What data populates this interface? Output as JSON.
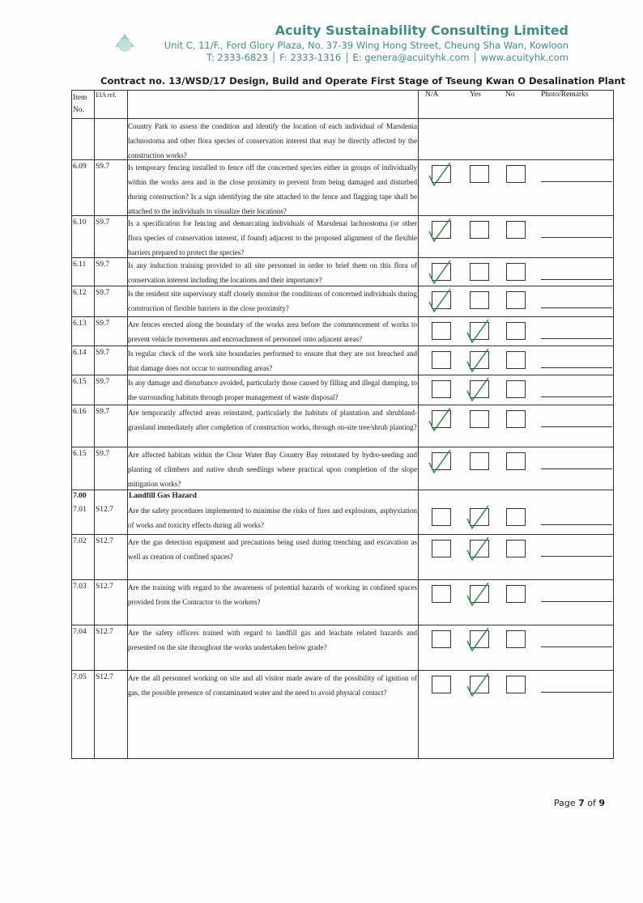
{
  "header": {
    "company": "Acuity Sustainability Consulting Limited",
    "address": "Unit C, 11/F., Ford Glory Plaza, No. 37-39 Wing Hong Street, Cheung Sha Wan, Kowloon",
    "phone": "T: 2333-6823",
    "fax": "F: 2333-1316",
    "email": "E: genera@acuityhk.com",
    "website": "www.acuityhk.com"
  },
  "title": "Contract no. 13/WSD/17 Design, Build and Operate First Stage of Tseung Kwan O Desalination Plant",
  "table": {
    "columns": [
      "Item No.",
      "EIA ref.",
      "N/A",
      "Yes",
      "No",
      "Photo/Remarks"
    ],
    "rows": [
      {
        "text": "Country Park to assess the condition and identify the location of each individual of Marsdenia lachnostoma and other flora species of conservation interest that may be directly affected by the construction works?"
      },
      {
        "item": "6.09",
        "ref": "S9.7",
        "text": "Is temporary fencing installed to fence off the concerned species either in groups of individually within the works area and in the close proximity to prevent from being damaged and disturbed during construction? Is a sign identifying the site attached to the fence and flagging tape shall be attached to the individuals to visualize their locations?",
        "checked": 0
      },
      {
        "item": "6.10",
        "ref": "S9.7",
        "text": "Is a specification for fencing and demarcating individuals of Marsdenai lachnostoma (or other flora species of conservation interest, if found) adjacent to the proposed alignment of the flexible barriers prepared to protect the species?",
        "checked": 0
      },
      {
        "item": "6.11",
        "ref": "S9.7",
        "text": "Is any induction training provided to all site personnel in order to brief them on this flora of conservation interest including the locations and their importance?",
        "checked": 0
      },
      {
        "item": "6.12",
        "ref": "S9.7",
        "text": "Is the resident site supervisory staff closely monitor the conditions of concerned individuals during construction of flexible barriers in the close proximity?",
        "checked": 0
      },
      {
        "item": "6.13",
        "ref": "S9.7",
        "text": "Are fences erected along the boundary of the works area before the commencement of works to prevent vehicle movements and encroachment of personnel onto adjacent areas?",
        "checked": 1
      },
      {
        "item": "6.14",
        "ref": "S9.7",
        "text": "Is regular check of the work site boundaries performed to ensure that they are not breached and that damage does not occur to surrounding areas?",
        "checked": 1
      },
      {
        "item": "6.15",
        "ref": "S9.7",
        "text": "Is any damage and disturbance avoided, particularly those caused by filling and illegal dumping, to the surrounding habitats through proper management of waste disposal?",
        "checked": 1
      },
      {
        "item": "6.16",
        "ref": "S9.7",
        "text": "Are temporarily affected areas reinstated, particularly the habitats of plantation and shrubland-grassland immediately after completion of construction works, through on-site tree/shrub planting?",
        "checked": 0
      },
      {
        "item": "6.15",
        "ref": "S9.7",
        "text": "Are affected habitats within the Clear Water Bay Country Bay reinstated by hydro-seeding and planting of climbers and native shrub seedlings where practical upon completion of the slope mitigation works?",
        "checked": 0
      },
      {
        "section": "7.00",
        "heading": "Landfill Gas Hazard",
        "item": "7.01",
        "ref": "S12.7",
        "text": "Are the safety procedures implemented to minimise the risks of fires and explosions, asphyxiation of works and toxicity effects during all works?",
        "checked": 1
      },
      {
        "item": "7.02",
        "ref": "S12.7",
        "text": "Are the gas detection equipment and precautions being used during trenching and excavation as well as creation of confined spaces?",
        "checked": 1
      },
      {
        "item": "7.03",
        "ref": "S12.7",
        "text": "Are the training with regard to the awareness of potential hazards of working in confined spaces provided from the Contractor to the workers?",
        "checked": 1
      },
      {
        "item": "7.04",
        "ref": "S12.7",
        "text": "Are the safety officers trained with regard to landfill gas and leachate related hazards and presented on the site throughout the works undertaken below grade?",
        "checked": 1
      },
      {
        "item": "7.05",
        "ref": "S12.7",
        "text": "Are the all personnel working on site and all visitor made aware of the possibility of ignition of gas, the possible presence of contaminated water and the need to avoid physical contact?",
        "checked": 1
      }
    ]
  },
  "footer": {
    "page_prefix": "Page",
    "page": "7",
    "page_of": "of",
    "pages": "9"
  }
}
